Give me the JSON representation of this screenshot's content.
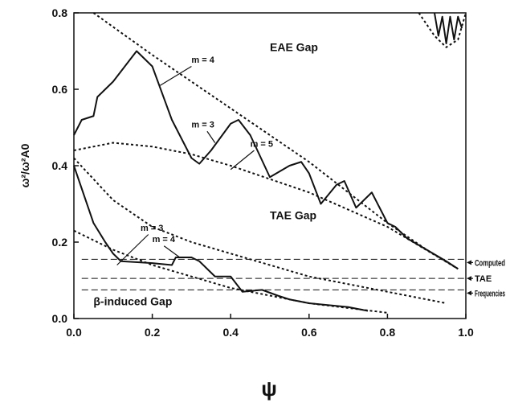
{
  "chart_data": {
    "type": "line",
    "xlabel": "ψ",
    "ylabel": "ω²/ω²A0",
    "xlim": [
      0,
      1
    ],
    "ylim": [
      0,
      0.8
    ],
    "xticks": [
      {
        "value": 0,
        "label": "0.0"
      },
      0.2,
      0.4,
      0.6,
      0.8,
      {
        "value": 1,
        "label": "1.0"
      }
    ],
    "yticks": [
      {
        "value": 0,
        "label": "0.0"
      },
      0.2,
      0.4,
      0.6,
      0.8
    ],
    "color": "#111111",
    "series": [
      {
        "style": "dotted",
        "x": [
          0.05,
          0.2,
          0.4,
          0.6,
          0.8,
          0.9,
          0.98
        ],
        "values": [
          0.8,
          0.69,
          0.55,
          0.41,
          0.25,
          0.18,
          0.13
        ]
      },
      {
        "style": "dotted",
        "x": [
          0,
          0.1,
          0.2,
          0.3,
          0.4,
          0.6,
          0.8,
          0.98
        ],
        "values": [
          0.44,
          0.46,
          0.45,
          0.43,
          0.4,
          0.33,
          0.24,
          0.13
        ]
      },
      {
        "style": "dotted",
        "x": [
          0,
          0.1,
          0.2,
          0.3,
          0.4,
          0.6,
          0.8,
          0.95
        ],
        "values": [
          0.42,
          0.31,
          0.24,
          0.2,
          0.17,
          0.11,
          0.07,
          0.04
        ]
      },
      {
        "style": "dotted",
        "x": [
          0,
          0.1,
          0.2,
          0.3,
          0.4,
          0.6,
          0.8
        ],
        "values": [
          0.23,
          0.18,
          0.14,
          0.11,
          0.08,
          0.04,
          0.015
        ]
      },
      {
        "style": "dotted",
        "x": [
          0.88,
          0.92,
          0.95,
          0.98,
          1.0
        ],
        "values": [
          0.8,
          0.74,
          0.71,
          0.73,
          0.8
        ]
      },
      {
        "style": "solid",
        "x": [
          0,
          0.02,
          0.05,
          0.06,
          0.1,
          0.16,
          0.2,
          0.25,
          0.3,
          0.32,
          0.35,
          0.4,
          0.42,
          0.45,
          0.5,
          0.55,
          0.58,
          0.6,
          0.63,
          0.67,
          0.69,
          0.72,
          0.76,
          0.78,
          0.8,
          0.82,
          0.85,
          0.9,
          0.95,
          0.98
        ],
        "values": [
          0.48,
          0.52,
          0.53,
          0.58,
          0.62,
          0.7,
          0.66,
          0.52,
          0.42,
          0.405,
          0.44,
          0.51,
          0.52,
          0.48,
          0.37,
          0.4,
          0.41,
          0.38,
          0.3,
          0.35,
          0.36,
          0.29,
          0.33,
          0.29,
          0.25,
          0.24,
          0.21,
          0.18,
          0.15,
          0.13
        ]
      },
      {
        "style": "solid",
        "x": [
          0,
          0.03,
          0.05,
          0.08,
          0.1,
          0.12,
          0.2,
          0.25,
          0.26,
          0.3,
          0.32,
          0.34,
          0.36,
          0.4,
          0.43,
          0.48,
          0.52,
          0.55,
          0.6,
          0.65,
          0.7,
          0.75
        ],
        "values": [
          0.4,
          0.31,
          0.25,
          0.2,
          0.17,
          0.15,
          0.145,
          0.14,
          0.16,
          0.16,
          0.15,
          0.13,
          0.11,
          0.11,
          0.07,
          0.075,
          0.06,
          0.05,
          0.04,
          0.035,
          0.03,
          0.02
        ]
      },
      {
        "style": "solid",
        "x": [
          0.92,
          0.93,
          0.94,
          0.95,
          0.96,
          0.97,
          0.98,
          0.99
        ],
        "values": [
          0.8,
          0.74,
          0.79,
          0.72,
          0.79,
          0.73,
          0.79,
          0.76
        ]
      },
      {
        "style": "dashed",
        "x": [
          0.02,
          1.0
        ],
        "values": [
          0.155,
          0.155
        ]
      },
      {
        "style": "dashed",
        "x": [
          0.02,
          1.0
        ],
        "values": [
          0.105,
          0.105
        ]
      },
      {
        "style": "dashed",
        "x": [
          0.02,
          1.0
        ],
        "values": [
          0.075,
          0.075
        ]
      }
    ],
    "right_labels": [
      "Computed",
      "TAE",
      "Frequencies"
    ],
    "annotations": [
      "EAE Gap",
      "TAE Gap",
      "β-induced Gap",
      "m = 4",
      "m = 3",
      "m = 5",
      "m = 3",
      "m = 4"
    ]
  }
}
